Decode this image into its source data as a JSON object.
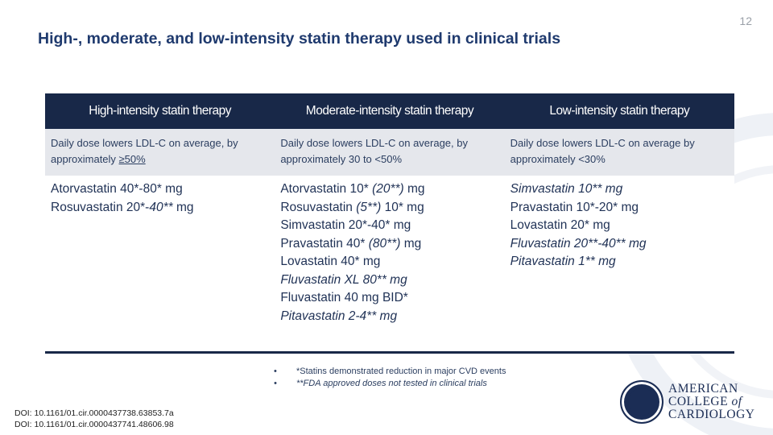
{
  "page_number": "12",
  "title": "High-, moderate, and low-intensity statin therapy used in clinical trials",
  "table": {
    "headers": [
      "High-intensity statin therapy",
      "Moderate-intensity statin therapy",
      "Low-intensity statin therapy"
    ],
    "descriptions": [
      [
        "Daily dose lowers LDL-C on average, by approximately ",
        "≥50%"
      ],
      [
        "Daily dose lowers LDL-C on average, by approximately 30 to <50%",
        ""
      ],
      [
        "Daily dose lowers LDL-C on average by approximately <30%",
        ""
      ]
    ],
    "drugs": [
      [
        [
          {
            "t": "Atorvastatin 40*-80* mg",
            "i": false
          }
        ],
        [
          {
            "t": "Rosuvastatin 20*-",
            "i": false
          },
          {
            "t": "40**",
            "i": true
          },
          {
            "t": " mg",
            "i": false
          }
        ]
      ],
      [
        [
          {
            "t": "Atorvastatin 10* ",
            "i": false
          },
          {
            "t": "(20**)",
            "i": true
          },
          {
            "t": " mg",
            "i": false
          }
        ],
        [
          {
            "t": "Rosuvastatin ",
            "i": false
          },
          {
            "t": "(5**)",
            "i": true
          },
          {
            "t": " 10* mg",
            "i": false
          }
        ],
        [
          {
            "t": "Simvastatin 20*-40* mg",
            "i": false
          }
        ],
        [
          {
            "t": "Pravastatin 40* ",
            "i": false
          },
          {
            "t": "(80**)",
            "i": true
          },
          {
            "t": " mg",
            "i": false
          }
        ],
        [
          {
            "t": "Lovastatin 40* mg",
            "i": false
          }
        ],
        [
          {
            "t": "Fluvastatin XL 80** mg",
            "i": true
          }
        ],
        [
          {
            "t": "Fluvastatin 40 mg BID*",
            "i": false
          }
        ],
        [
          {
            "t": "Pitavastatin 2-4** mg",
            "i": true
          }
        ]
      ],
      [
        [
          {
            "t": "Simvastatin 10** mg",
            "i": true
          }
        ],
        [
          {
            "t": "Pravastatin 10*-20* mg",
            "i": false
          }
        ],
        [
          {
            "t": "Lovastatin 20* mg",
            "i": false
          }
        ],
        [
          {
            "t": "Fluvastatin 20**-40** mg",
            "i": true
          }
        ],
        [
          {
            "t": "Pitavastatin 1** mg",
            "i": true
          }
        ]
      ]
    ]
  },
  "footnotes": [
    "*Statins demonstrated reduction in major CVD events",
    "**FDA approved doses not tested in clinical trials"
  ],
  "doi": [
    "DOI:  10.1161/01.cir.0000437738.63853.7a",
    "DOI:  10.1161/01.cir.0000437741.48606.98"
  ],
  "logo": {
    "line1": "AMERICAN",
    "line2": "COLLEGE",
    "line2b": "of",
    "line3": "CARDIOLOGY"
  },
  "colors": {
    "navy": "#182848",
    "title": "#1f3a6e",
    "desc_bg": "#e5e7ec"
  }
}
